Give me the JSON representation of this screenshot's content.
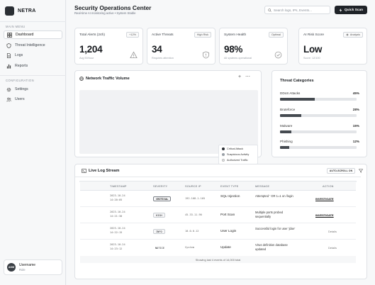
{
  "brand": {
    "name": "NETRA"
  },
  "nav": {
    "main_menu_label": "MAIN MENU",
    "main_items": [
      {
        "label": "Dashboard",
        "icon": "dashboard-icon",
        "active": true
      },
      {
        "label": "Threat Intelligence",
        "icon": "shield-icon",
        "active": false
      },
      {
        "label": "Logs",
        "icon": "document-icon",
        "active": false
      },
      {
        "label": "Reports",
        "icon": "bar-chart-icon",
        "active": false
      }
    ],
    "config_label": "CONFIGURATION",
    "config_items": [
      {
        "label": "Settings",
        "icon": "gear-icon"
      },
      {
        "label": "Users",
        "icon": "users-icon"
      }
    ]
  },
  "user": {
    "initials": "ADM",
    "name": "Username",
    "role": "Role"
  },
  "header": {
    "title": "Security Operations Center",
    "subtitle": "Real-time AI monitoring active • System Stable",
    "search_placeholder": "Search logs, IPs, Events...",
    "quick_scan": "Quick Scan"
  },
  "kpis": [
    {
      "title": "Total Alerts (24h)",
      "badge": "+12%",
      "value": "1,204",
      "foot": "Avg 50/hour",
      "icon": "warning-icon"
    },
    {
      "title": "Active Threats",
      "badge": "High Risk",
      "value": "34",
      "foot": "Requires attention",
      "icon": "shield-alert-icon"
    },
    {
      "title": "System Health",
      "badge": "Optimal",
      "value": "98%",
      "foot": "All systems operational",
      "icon": "check-circle-icon"
    },
    {
      "title": "AI Risk Score",
      "badge": "Analysis",
      "value": "Low",
      "foot": "Score: 12/100",
      "icon": "sparkle-icon"
    }
  ],
  "traffic": {
    "title": "Network Traffic Volume",
    "legend": [
      {
        "label": "Critical Attack",
        "color": "#2b2f34"
      },
      {
        "label": "Suspicious Activity",
        "color": "#9aa0a7"
      },
      {
        "label": "Authorized Traffic",
        "color": "#e8eaed"
      }
    ]
  },
  "categories": {
    "title": "Threat Categories",
    "items": [
      {
        "label": "DDoS Attacks",
        "pct_label": "45%",
        "fraction": 0.45
      },
      {
        "label": "Bruteforce",
        "pct_label": "28%",
        "fraction": 0.28
      },
      {
        "label": "Malware",
        "pct_label": "15%",
        "fraction": 0.15
      },
      {
        "label": "Phishing",
        "pct_label": "12%",
        "fraction": 0.12
      }
    ]
  },
  "logs": {
    "title": "Live Log Stream",
    "auto_scroll": "AUTO-SCROLL ON",
    "columns": [
      "TIMESTAMP",
      "SEVERITY",
      "SOURCE IP",
      "EVENT TYPE",
      "MESSAGE",
      "ACTION"
    ],
    "rows": [
      {
        "date": "2023-10-24",
        "time": "14:20:05",
        "severity": "CRITICAL",
        "ip": "192.168.1.105",
        "event": "SQL Injection",
        "message": "Attempted ' OR 1=1 on /login",
        "action": "INVESTIGATE"
      },
      {
        "date": "2023-10-24",
        "time": "14:21:30",
        "severity": "HIGH",
        "ip": "45.33.11.90",
        "event": "Port Scan",
        "message": "Multiple ports probed sequentially",
        "action": "INVESTIGATE"
      },
      {
        "date": "2023-10-24",
        "time": "14:22:15",
        "severity": "INFO",
        "ip": "10.0.0.12",
        "event": "User Login",
        "message": "Successful login for user 'jdoe'",
        "action": "Details"
      },
      {
        "date": "2023-10-24",
        "time": "14:23:12",
        "severity": "NOTICE",
        "ip": "System",
        "event": "Update",
        "message": "Virus definition database updated",
        "action": "Details"
      }
    ],
    "footer": "Showing last 4 events of 14,000 total"
  }
}
